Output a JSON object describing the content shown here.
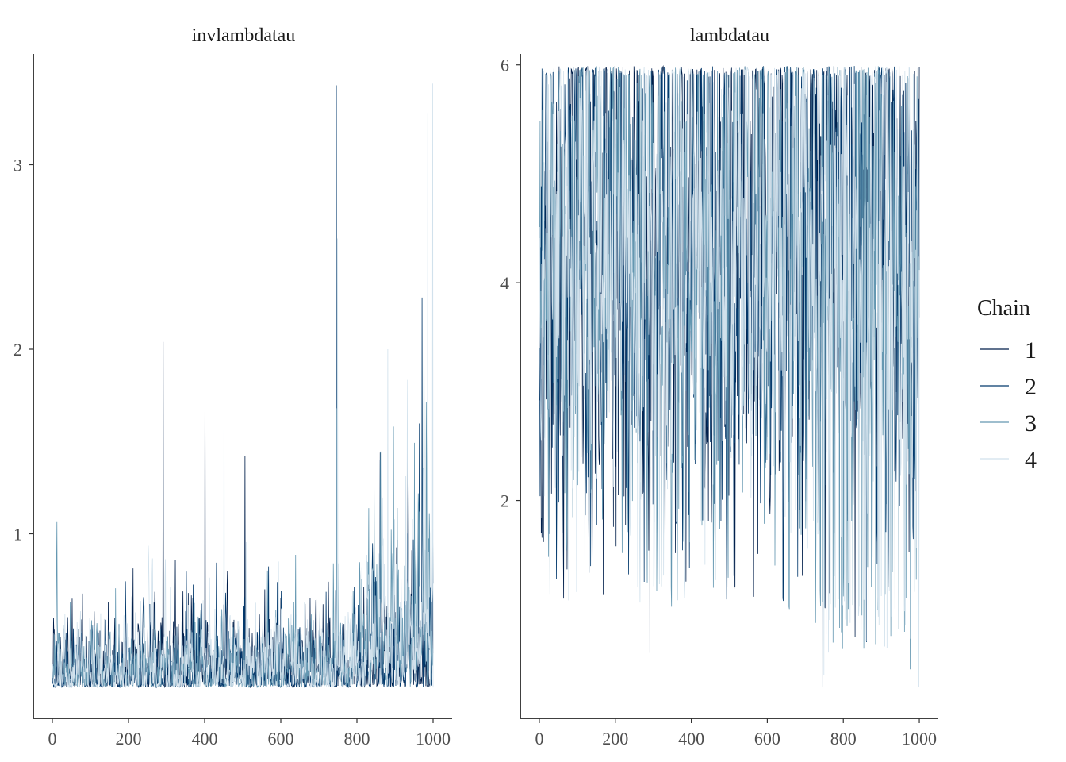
{
  "chart_data": {
    "type": "line",
    "subtype": "mcmc-trace-facets",
    "legend": {
      "title": "Chain",
      "position": "right",
      "entries": [
        {
          "label": "1",
          "color": "#011f4b"
        },
        {
          "label": "2",
          "color": "#03396c"
        },
        {
          "label": "3",
          "color": "#6497b1"
        },
        {
          "label": "4",
          "color": "#d1e1ec"
        }
      ]
    },
    "grid": false,
    "panels": [
      {
        "title": "invlambdatau",
        "xlim": [
          -50,
          1050
        ],
        "ylim": [
          0,
          3.6
        ],
        "xticks": [
          0,
          200,
          400,
          600,
          800,
          1000
        ],
        "xtick_labels": [
          "0",
          "200",
          "400",
          "600",
          "800",
          "1000"
        ],
        "yticks": [
          1,
          2,
          3
        ],
        "ytick_labels": [
          "1",
          "2",
          "3"
        ],
        "iterations": 1000,
        "summary": {
          "min": 0.167,
          "max": 3.45
        },
        "chain_peaks": [
          {
            "chain": "1",
            "points": [
              [
                290,
                2.04
              ],
              [
                400,
                1.96
              ],
              [
                505,
                1.42
              ],
              [
                860,
                1.44
              ]
            ]
          },
          {
            "chain": "2",
            "points": [
              [
                745,
                3.43
              ],
              [
                860,
                1.4
              ],
              [
                970,
                2.28
              ]
            ]
          },
          {
            "chain": "3",
            "points": [
              [
                745,
                1.68
              ],
              [
                905,
                1.14
              ],
              [
                975,
                2.26
              ]
            ]
          },
          {
            "chain": "4",
            "points": [
              [
                450,
                1.85
              ],
              [
                748,
                2.6
              ],
              [
                880,
                2.0
              ],
              [
                985,
                3.28
              ],
              [
                998,
                3.44
              ]
            ]
          }
        ]
      },
      {
        "title": "lambdatau",
        "xlim": [
          -50,
          1050
        ],
        "ylim": [
          0,
          6.1
        ],
        "xticks": [
          0,
          200,
          400,
          600,
          800,
          1000
        ],
        "xtick_labels": [
          "0",
          "200",
          "400",
          "600",
          "800",
          "1000"
        ],
        "yticks": [
          2,
          4,
          6
        ],
        "ytick_labels": [
          "2",
          "4",
          "6"
        ],
        "iterations": 1000,
        "summary": {
          "min": 0.29,
          "max": 5.99
        },
        "chain_troughs": [
          {
            "chain": "1",
            "points": [
              [
                290,
                0.6
              ],
              [
                830,
                0.75
              ]
            ]
          },
          {
            "chain": "2",
            "points": [
              [
                745,
                0.29
              ],
              [
                860,
                0.7
              ]
            ]
          },
          {
            "chain": "3",
            "points": [
              [
                975,
                0.45
              ]
            ]
          },
          {
            "chain": "4",
            "points": [
              [
                748,
                0.4
              ],
              [
                998,
                0.29
              ]
            ]
          }
        ]
      }
    ]
  }
}
